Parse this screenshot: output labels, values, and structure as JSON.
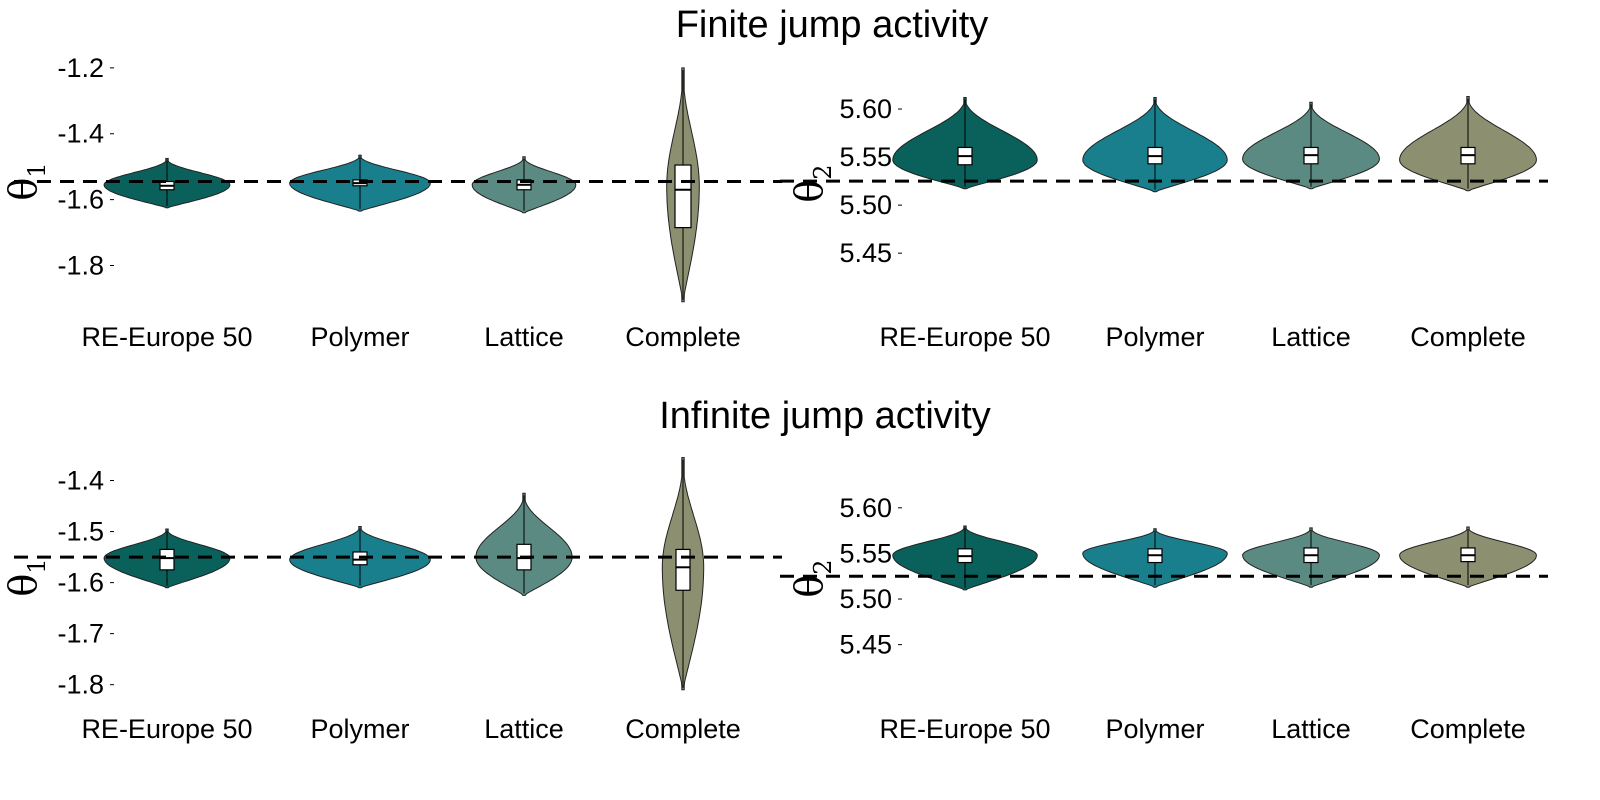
{
  "section_titles": [
    "Finite jump activity",
    "Infinite jump activity"
  ],
  "colors": {
    "RE-Europe 50": "#0a605a",
    "Polymer": "#1a7f8c",
    "Lattice": "#5b8a82",
    "Complete": "#8c9070"
  },
  "chart_data": [
    {
      "type": "violin",
      "title": "",
      "ylabel": "θ",
      "ylabel_sub": "1",
      "categories": [
        "RE-Europe 50",
        "Polymer",
        "Lattice",
        "Complete"
      ],
      "yticks": [
        -1.2,
        -1.4,
        -1.6,
        -1.8
      ],
      "ylim": [
        -1.92,
        -1.17
      ],
      "reference_line": -1.545,
      "violins": [
        {
          "top": -1.475,
          "bottom": -1.625,
          "peak": -1.555,
          "width": 0.85,
          "q1": -1.57,
          "median": -1.558,
          "q3": -1.545
        },
        {
          "top": -1.465,
          "bottom": -1.635,
          "peak": -1.55,
          "width": 0.95,
          "q1": -1.558,
          "median": -1.55,
          "q3": -1.54
        },
        {
          "top": -1.47,
          "bottom": -1.64,
          "peak": -1.555,
          "width": 0.7,
          "q1": -1.57,
          "median": -1.555,
          "q3": -1.54
        },
        {
          "top": -1.2,
          "bottom": -1.91,
          "peak": -1.56,
          "width": 0.22,
          "q1": -1.685,
          "median": -1.57,
          "q3": -1.495
        }
      ]
    },
    {
      "type": "violin",
      "title": "",
      "ylabel": "θ",
      "ylabel_sub": "2",
      "categories": [
        "RE-Europe 50",
        "Polymer",
        "Lattice",
        "Complete"
      ],
      "yticks": [
        5.6,
        5.55,
        5.5,
        5.45
      ],
      "ylim": [
        5.42,
        5.625
      ],
      "reference_line": 5.525,
      "violins": [
        {
          "top": 5.612,
          "bottom": 5.517,
          "peak": 5.547,
          "width": 0.95,
          "q1": 5.542,
          "median": 5.551,
          "q3": 5.56
        },
        {
          "top": 5.612,
          "bottom": 5.514,
          "peak": 5.547,
          "width": 0.95,
          "q1": 5.543,
          "median": 5.551,
          "q3": 5.56
        },
        {
          "top": 5.607,
          "bottom": 5.517,
          "peak": 5.548,
          "width": 0.9,
          "q1": 5.543,
          "median": 5.552,
          "q3": 5.56
        },
        {
          "top": 5.613,
          "bottom": 5.515,
          "peak": 5.547,
          "width": 0.9,
          "q1": 5.543,
          "median": 5.552,
          "q3": 5.56
        }
      ]
    },
    {
      "type": "violin",
      "title": "",
      "ylabel": "θ",
      "ylabel_sub": "1",
      "categories": [
        "RE-Europe 50",
        "Polymer",
        "Lattice",
        "Complete"
      ],
      "yticks": [
        -1.4,
        -1.5,
        -1.6,
        -1.7,
        -1.8
      ],
      "ylim": [
        -1.83,
        -1.35
      ],
      "reference_line": -1.55,
      "violins": [
        {
          "top": -1.495,
          "bottom": -1.61,
          "peak": -1.552,
          "width": 0.85,
          "q1": -1.575,
          "median": -1.552,
          "q3": -1.535
        },
        {
          "top": -1.49,
          "bottom": -1.61,
          "peak": -1.555,
          "width": 0.95,
          "q1": -1.565,
          "median": -1.555,
          "q3": -1.54
        },
        {
          "top": -1.425,
          "bottom": -1.625,
          "peak": -1.55,
          "width": 0.65,
          "q1": -1.575,
          "median": -1.552,
          "q3": -1.525
        },
        {
          "top": -1.355,
          "bottom": -1.81,
          "peak": -1.57,
          "width": 0.28,
          "q1": -1.615,
          "median": -1.57,
          "q3": -1.535
        }
      ]
    },
    {
      "type": "violin",
      "title": "",
      "ylabel": "θ",
      "ylabel_sub": "2",
      "categories": [
        "RE-Europe 50",
        "Polymer",
        "Lattice",
        "Complete"
      ],
      "yticks": [
        5.6,
        5.55,
        5.5,
        5.45
      ],
      "ylim": [
        5.42,
        5.625
      ],
      "reference_line": 5.525,
      "violins": [
        {
          "top": 5.58,
          "bottom": 5.51,
          "peak": 5.548,
          "width": 0.95,
          "q1": 5.54,
          "median": 5.547,
          "q3": 5.555
        },
        {
          "top": 5.577,
          "bottom": 5.513,
          "peak": 5.55,
          "width": 0.95,
          "q1": 5.54,
          "median": 5.548,
          "q3": 5.555
        },
        {
          "top": 5.578,
          "bottom": 5.513,
          "peak": 5.548,
          "width": 0.9,
          "q1": 5.54,
          "median": 5.548,
          "q3": 5.556
        },
        {
          "top": 5.579,
          "bottom": 5.513,
          "peak": 5.548,
          "width": 0.9,
          "q1": 5.541,
          "median": 5.548,
          "q3": 5.556
        }
      ]
    }
  ]
}
